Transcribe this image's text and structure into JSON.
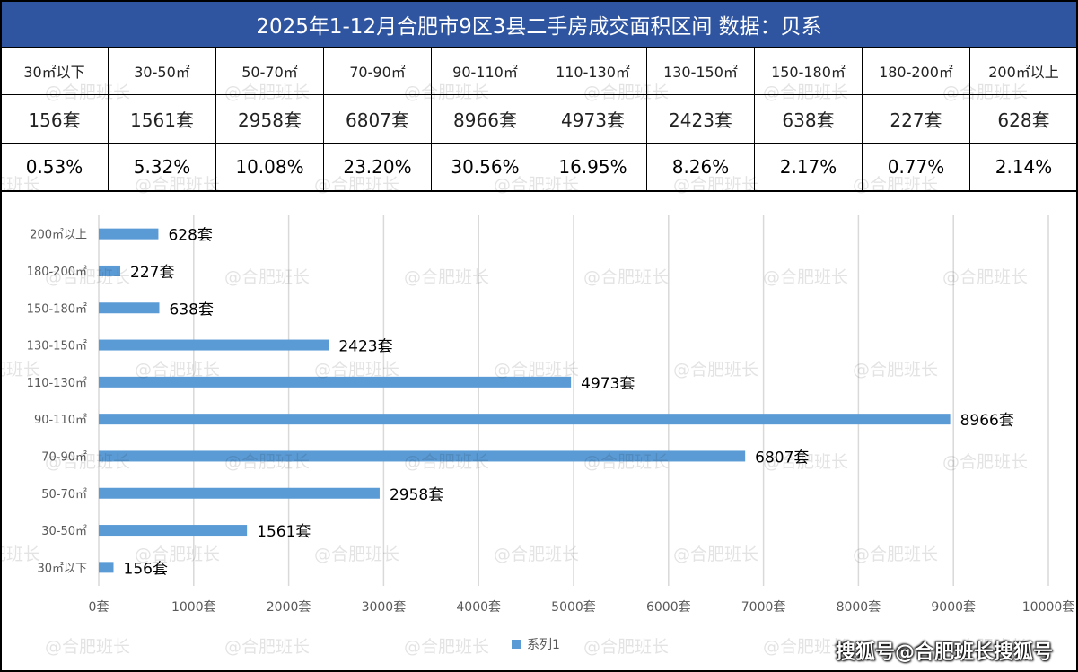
{
  "title": "2025年1-12月合肥市9区3县二手房成交面积区间 数据：贝系",
  "table": {
    "headers": [
      "30㎡以下",
      "30-50㎡",
      "50-70㎡",
      "70-90㎡",
      "90-110㎡",
      "110-130㎡",
      "130-150㎡",
      "150-180㎡",
      "180-200㎡",
      "200㎡以上"
    ],
    "counts": [
      "156套",
      "1561套",
      "2958套",
      "6807套",
      "8966套",
      "4973套",
      "2423套",
      "638套",
      "227套",
      "628套"
    ],
    "percents": [
      "0.53%",
      "5.32%",
      "10.08%",
      "23.20%",
      "30.56%",
      "16.95%",
      "8.26%",
      "2.17%",
      "0.77%",
      "2.14%"
    ]
  },
  "chart_data": {
    "type": "bar",
    "orientation": "horizontal",
    "categories": [
      "30㎡以下",
      "30-50㎡",
      "50-70㎡",
      "70-90㎡",
      "90-110㎡",
      "110-130㎡",
      "130-150㎡",
      "150-180㎡",
      "180-200㎡",
      "200㎡以上"
    ],
    "series": [
      {
        "name": "系列1",
        "values": [
          156,
          1561,
          2958,
          6807,
          8966,
          4973,
          2423,
          638,
          227,
          628
        ],
        "color": "#5b9bd5"
      }
    ],
    "data_labels": [
      "156套",
      "1561套",
      "2958套",
      "6807套",
      "8966套",
      "4973套",
      "2423套",
      "638套",
      "227套",
      "628套"
    ],
    "xlim": [
      0,
      10000
    ],
    "xticks": [
      "0套",
      "1000套",
      "2000套",
      "3000套",
      "4000套",
      "5000套",
      "6000套",
      "7000套",
      "8000套",
      "9000套",
      "10000套"
    ],
    "grid": true,
    "legend": "bottom"
  },
  "watermark": "@合肥班长",
  "brand": "搜狐号@合肥班长搜狐号"
}
